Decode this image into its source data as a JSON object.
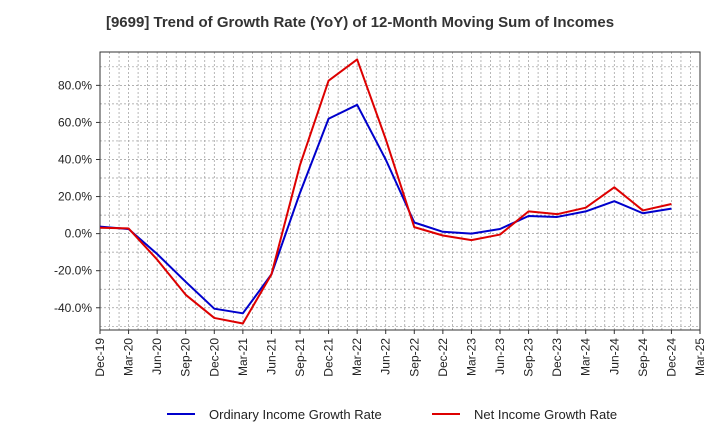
{
  "chart_data": {
    "type": "line",
    "title": "[9699]  Trend of Growth Rate (YoY) of 12-Month Moving Sum of Incomes",
    "xlabel": "",
    "ylabel": "",
    "x_ticks": [
      "Dec-19",
      "Mar-20",
      "Jun-20",
      "Sep-20",
      "Dec-20",
      "Mar-21",
      "Jun-21",
      "Sep-21",
      "Dec-21",
      "Mar-22",
      "Jun-22",
      "Sep-22",
      "Dec-22",
      "Mar-23",
      "Jun-23",
      "Sep-23",
      "Dec-23",
      "Mar-24",
      "Jun-24",
      "Sep-24",
      "Dec-24",
      "Mar-25"
    ],
    "y_ticks": [
      -40,
      -20,
      0,
      20,
      40,
      60,
      80
    ],
    "y_tick_suffix": "%",
    "ylim": [
      -52,
      98
    ],
    "grid": true,
    "legend_position": "bottom",
    "series": [
      {
        "name": "Ordinary Income Growth Rate",
        "color": "#0000cc",
        "values": [
          3.8,
          2.5,
          -11,
          -26,
          -40.5,
          -43,
          -22,
          22,
          62,
          69.5,
          40,
          6,
          1,
          0,
          2.5,
          9.5,
          9,
          12,
          17.5,
          11,
          13.5
        ]
      },
      {
        "name": "Net Income Growth Rate",
        "color": "#dd0000",
        "values": [
          3.2,
          2.8,
          -14,
          -33,
          -45.5,
          -48.5,
          -22,
          37,
          82.5,
          94,
          51,
          3.5,
          -1,
          -3.5,
          -0.5,
          12,
          10.5,
          14,
          25,
          12.5,
          16
        ]
      }
    ]
  }
}
